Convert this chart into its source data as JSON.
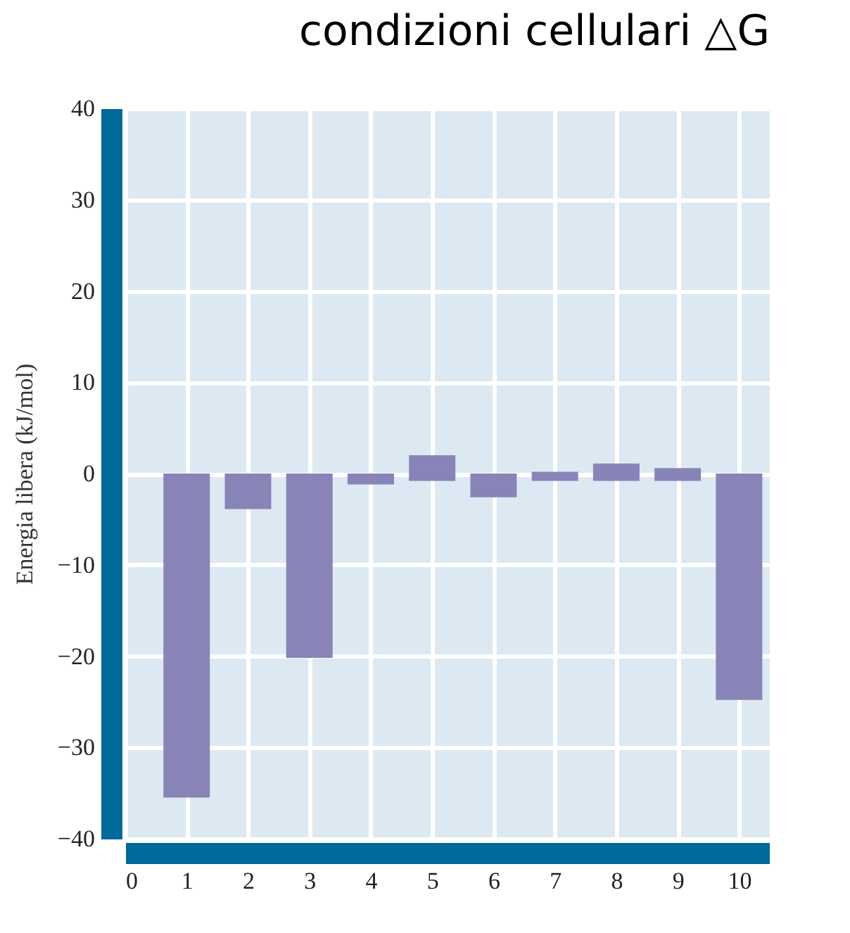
{
  "chart_data": {
    "type": "bar",
    "title": "condizioni cellulari △G",
    "ylabel": "Energia libera (kJ/mol)",
    "x": [
      1,
      2,
      3,
      4,
      5,
      6,
      7,
      8,
      9,
      10
    ],
    "values": [
      -35.5,
      -3.9,
      -20.2,
      -1.2,
      2.8,
      -2.6,
      1.0,
      1.9,
      1.4,
      -24.8
    ],
    "base": [
      0,
      0,
      0,
      0,
      -0.8,
      0,
      -0.8,
      -0.8,
      -0.8,
      0
    ],
    "color": "#8884b8",
    "xlim": [
      0,
      10.5
    ],
    "xticks": [
      0,
      1,
      2,
      3,
      4,
      5,
      6,
      7,
      8,
      9,
      10
    ],
    "ylim": [
      -40,
      40
    ],
    "yticks": [
      {
        "value": -40,
        "label": "−40"
      },
      {
        "value": -30,
        "label": "−30"
      },
      {
        "value": -20,
        "label": "−20"
      },
      {
        "value": -10,
        "label": "−10"
      },
      0,
      10,
      20,
      30,
      40
    ],
    "grid": true
  }
}
